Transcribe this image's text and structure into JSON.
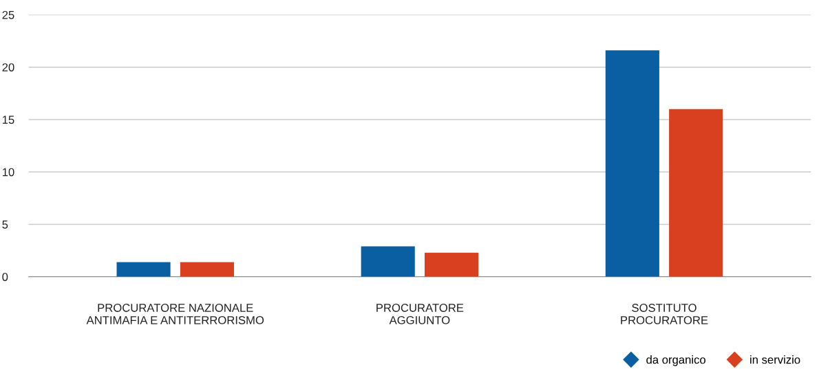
{
  "chart_data": {
    "type": "bar",
    "categories": [
      "PROCURATORE NAZIONALE\nANTIMAFIA E ANTITERRORISMO",
      "PROCURATORE\nAGGIUNTO",
      "SOSTITUTO\nPROCURATORE"
    ],
    "series": [
      {
        "name": "da organico",
        "color": "#0a5fa3",
        "values": [
          1.4,
          2.9,
          21.6
        ]
      },
      {
        "name": "in servizio",
        "color": "#d9401f",
        "values": [
          1.4,
          2.3,
          16.0
        ]
      }
    ],
    "ylim": [
      0,
      25
    ],
    "yticks": [
      0,
      5,
      10,
      15,
      20,
      25
    ],
    "grid": "y",
    "legend": "bottom right",
    "marker": "diamond"
  }
}
